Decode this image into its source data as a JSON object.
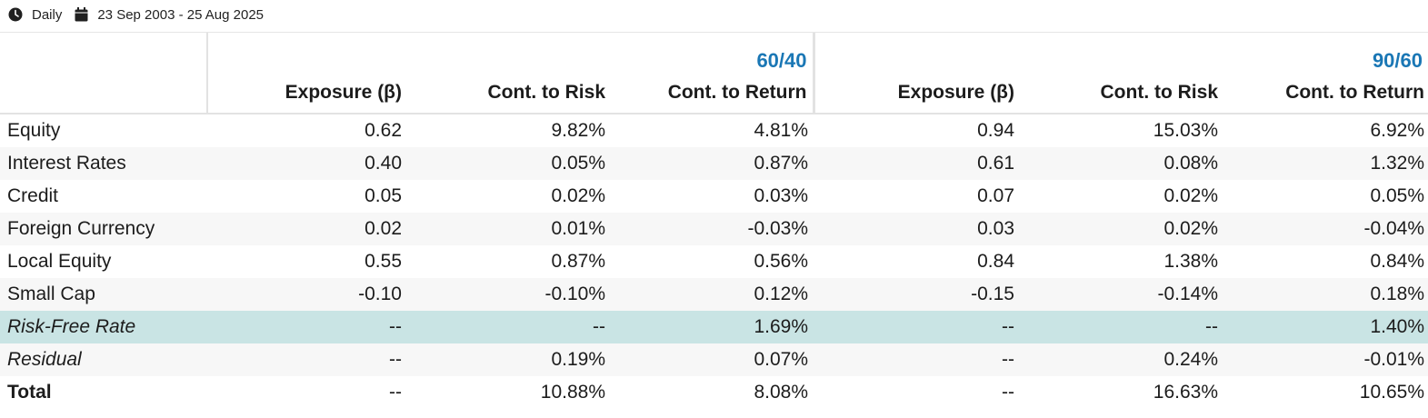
{
  "toolbar": {
    "frequency_label": "Daily",
    "date_range_label": "23 Sep 2003 - 25 Aug 2025"
  },
  "groups": [
    {
      "title": "60/40"
    },
    {
      "title": "90/60"
    }
  ],
  "columns": [
    "Exposure (β)",
    "Cont. to Risk",
    "Cont. to Return",
    "Exposure (β)",
    "Cont. to Risk",
    "Cont. to Return"
  ],
  "rows": [
    {
      "name": "Equity",
      "values": [
        "0.62",
        "9.82%",
        "4.81%",
        "0.94",
        "15.03%",
        "6.92%"
      ]
    },
    {
      "name": "Interest Rates",
      "values": [
        "0.40",
        "0.05%",
        "0.87%",
        "0.61",
        "0.08%",
        "1.32%"
      ]
    },
    {
      "name": "Credit",
      "values": [
        "0.05",
        "0.02%",
        "0.03%",
        "0.07",
        "0.02%",
        "0.05%"
      ]
    },
    {
      "name": "Foreign Currency",
      "values": [
        "0.02",
        "0.01%",
        "-0.03%",
        "0.03",
        "0.02%",
        "-0.04%"
      ]
    },
    {
      "name": "Local Equity",
      "values": [
        "0.55",
        "0.87%",
        "0.56%",
        "0.84",
        "1.38%",
        "0.84%"
      ]
    },
    {
      "name": "Small Cap",
      "values": [
        "-0.10",
        "-0.10%",
        "0.12%",
        "-0.15",
        "-0.14%",
        "0.18%"
      ]
    },
    {
      "name": "Risk-Free Rate",
      "values": [
        "--",
        "--",
        "1.69%",
        "--",
        "--",
        "1.40%"
      ]
    },
    {
      "name": "Residual",
      "values": [
        "--",
        "0.19%",
        "0.07%",
        "--",
        "0.24%",
        "-0.01%"
      ]
    },
    {
      "name": "Total",
      "values": [
        "--",
        "10.88%",
        "8.08%",
        "--",
        "16.63%",
        "10.65%"
      ]
    }
  ],
  "colors": {
    "group_title": "#1a77b5",
    "highlight_row": "#c9e4e4",
    "alt_row": "#f7f7f7"
  },
  "icons": {
    "frequency": "clock-icon",
    "date_range": "calendar-icon"
  }
}
